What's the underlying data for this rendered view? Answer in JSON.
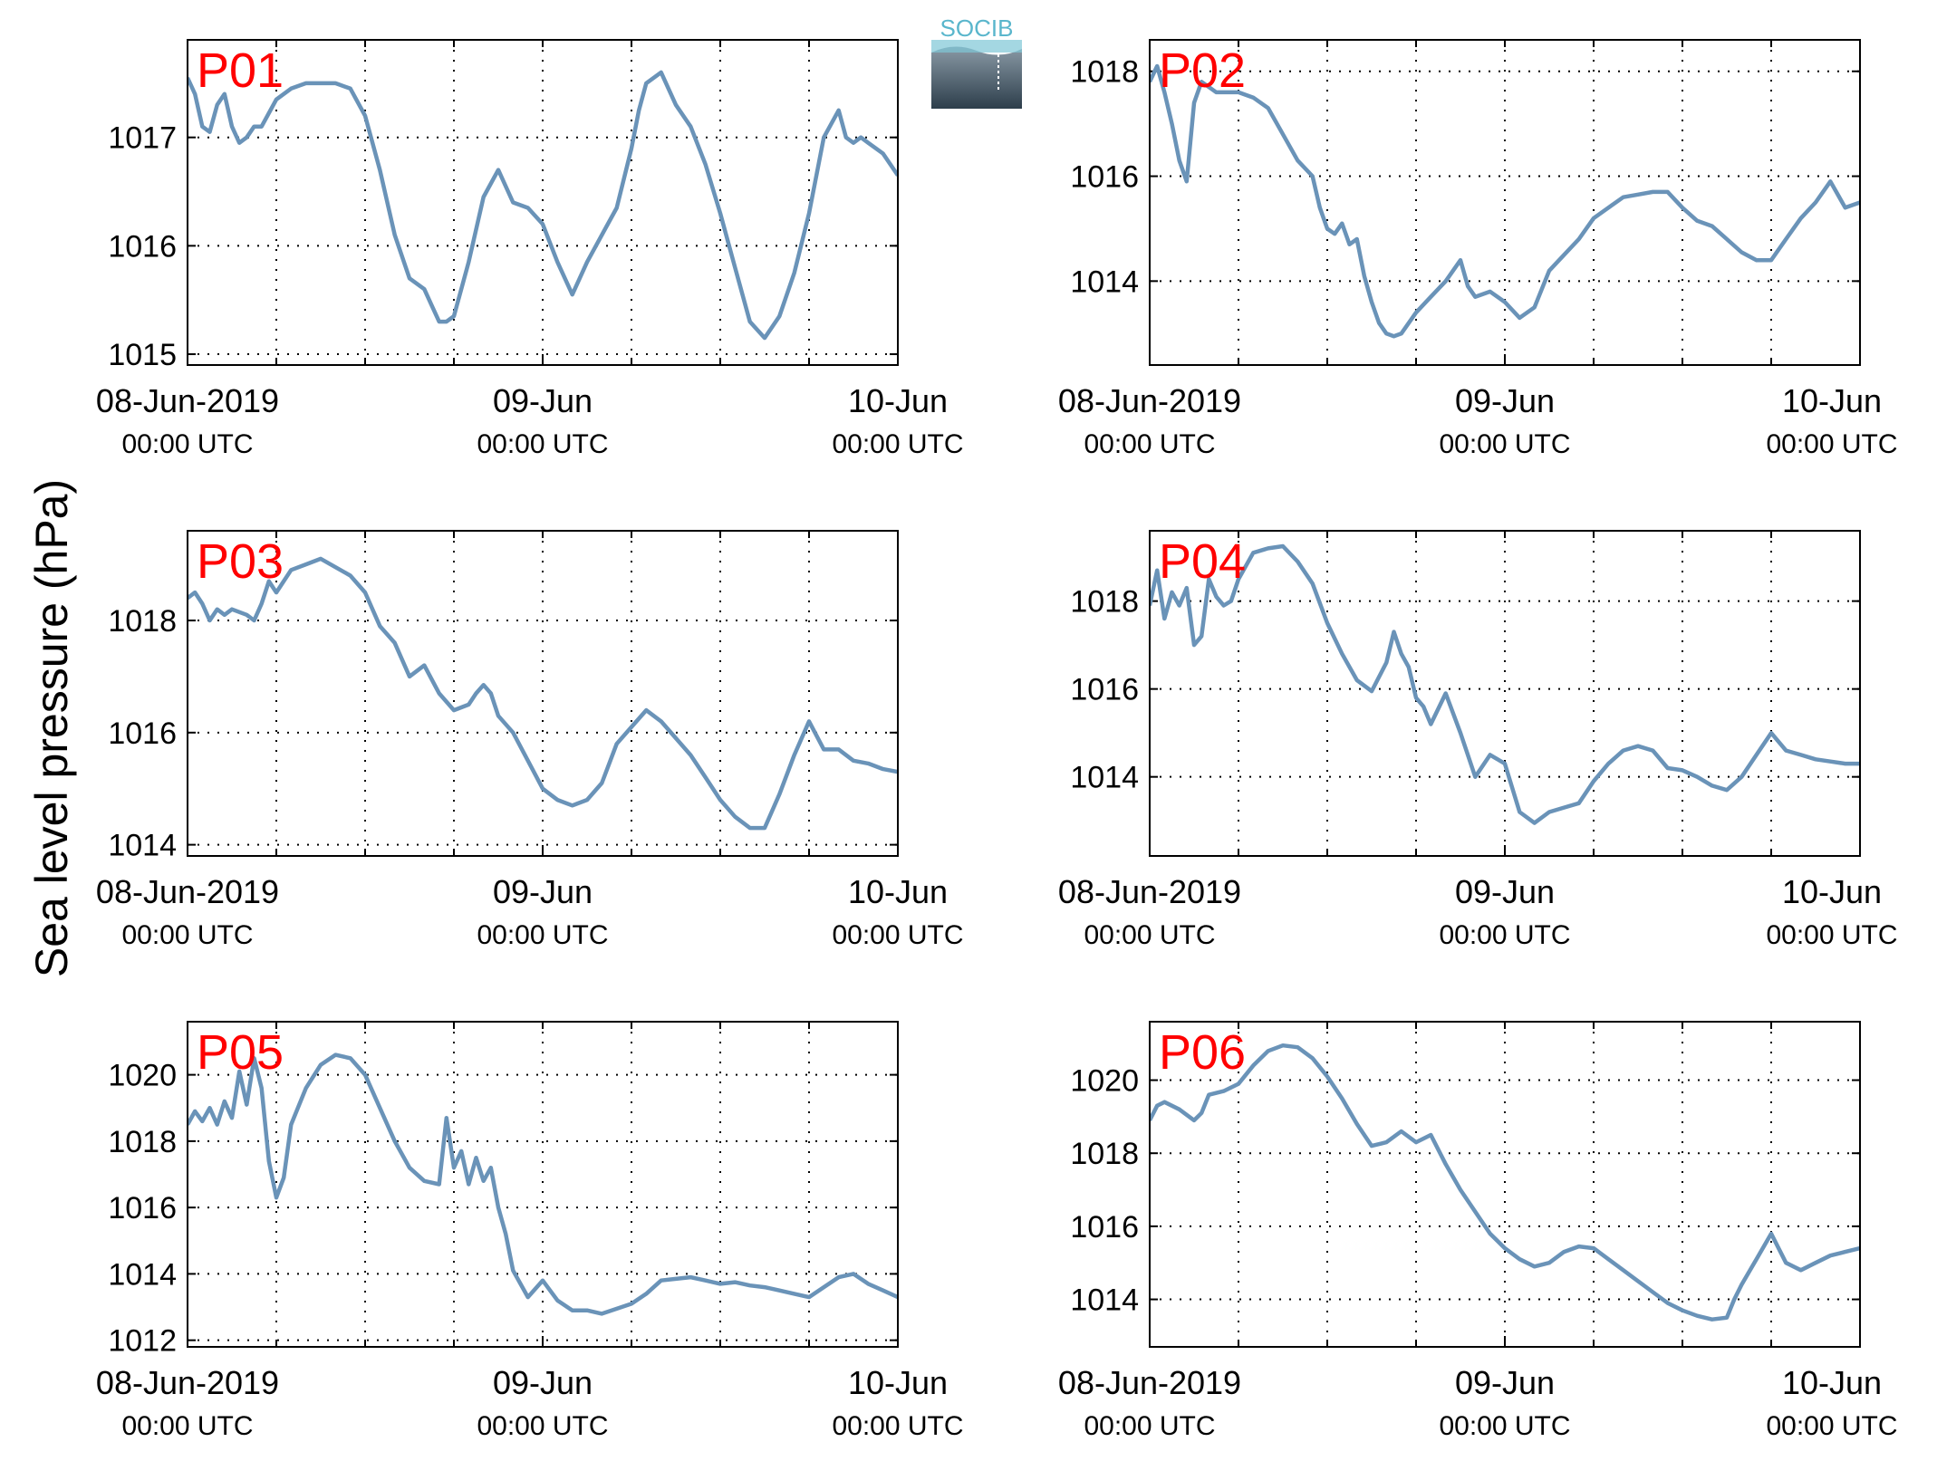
{
  "figure": {
    "ylabel": "Sea level pressure (hPa)",
    "logo_text": "SOCIB"
  },
  "style": {
    "line_color": "#6a93b8",
    "station_label_color": "#ff0000",
    "axis_color": "#000000",
    "grid": "dotted"
  },
  "x_ticks": [
    {
      "date": "08-Jun-2019",
      "time": "00:00 UTC"
    },
    {
      "date": "09-Jun",
      "time": "00:00 UTC"
    },
    {
      "date": "10-Jun",
      "time": "00:00 UTC"
    }
  ],
  "chart_data": [
    {
      "type": "line",
      "station": "P01",
      "x_unit": "hours since 08-Jun-2019 00:00 UTC",
      "xlim": [
        0,
        48
      ],
      "ylim": [
        1014.9,
        1017.9
      ],
      "yticks": [
        1015,
        1016,
        1017
      ],
      "x": [
        0,
        0.5,
        1,
        1.5,
        2,
        2.5,
        3,
        3.5,
        4,
        4.5,
        5,
        6,
        7,
        8,
        9,
        10,
        11,
        12,
        13,
        14,
        15,
        16,
        16.5,
        17,
        17.5,
        18,
        19,
        20,
        21,
        22,
        23,
        24,
        25,
        26,
        27,
        28,
        29,
        30,
        30.5,
        31,
        32,
        33,
        34,
        35,
        36,
        37,
        38,
        39,
        40,
        41,
        42,
        43,
        44,
        44.5,
        45,
        45.5,
        46,
        47,
        48
      ],
      "values": [
        1017.55,
        1017.4,
        1017.1,
        1017.05,
        1017.3,
        1017.4,
        1017.1,
        1016.95,
        1017.0,
        1017.1,
        1017.1,
        1017.35,
        1017.45,
        1017.5,
        1017.5,
        1017.5,
        1017.45,
        1017.2,
        1016.7,
        1016.1,
        1015.7,
        1015.6,
        1015.45,
        1015.3,
        1015.3,
        1015.35,
        1015.85,
        1016.45,
        1016.7,
        1016.4,
        1016.35,
        1016.2,
        1015.85,
        1015.55,
        1015.85,
        1016.1,
        1016.35,
        1016.9,
        1017.25,
        1017.5,
        1017.6,
        1017.3,
        1017.1,
        1016.75,
        1016.3,
        1015.8,
        1015.3,
        1015.15,
        1015.35,
        1015.75,
        1016.3,
        1017.0,
        1017.25,
        1017.0,
        1016.95,
        1017.0,
        1016.95,
        1016.85,
        1016.65
      ]
    },
    {
      "type": "line",
      "station": "P02",
      "x_unit": "hours since 08-Jun-2019 00:00 UTC",
      "xlim": [
        0,
        48
      ],
      "ylim": [
        1012.4,
        1018.6
      ],
      "yticks": [
        1014,
        1016,
        1018
      ],
      "x": [
        0,
        0.5,
        1,
        1.5,
        2,
        2.5,
        3,
        3.5,
        4,
        4.5,
        5,
        6,
        7,
        8,
        9,
        10,
        11,
        11.5,
        12,
        12.5,
        13,
        13.5,
        14,
        14.5,
        15,
        15.5,
        16,
        16.5,
        17,
        18,
        19,
        20,
        21,
        21.5,
        22,
        23,
        24,
        25,
        26,
        27,
        28,
        29,
        30,
        31,
        32,
        33,
        34,
        35,
        36,
        37,
        38,
        39,
        40,
        41,
        42,
        43,
        44,
        45,
        46,
        47,
        48
      ],
      "values": [
        1017.8,
        1018.1,
        1017.6,
        1017.0,
        1016.3,
        1015.9,
        1017.4,
        1017.8,
        1017.7,
        1017.6,
        1017.6,
        1017.6,
        1017.5,
        1017.3,
        1016.8,
        1016.3,
        1016.0,
        1015.4,
        1015.0,
        1014.9,
        1015.1,
        1014.7,
        1014.8,
        1014.1,
        1013.6,
        1013.2,
        1013.0,
        1012.95,
        1013.0,
        1013.4,
        1013.7,
        1014.0,
        1014.4,
        1013.9,
        1013.7,
        1013.8,
        1013.6,
        1013.3,
        1013.5,
        1014.2,
        1014.5,
        1014.8,
        1015.2,
        1015.4,
        1015.6,
        1015.65,
        1015.7,
        1015.7,
        1015.4,
        1015.15,
        1015.05,
        1014.8,
        1014.55,
        1014.4,
        1014.4,
        1014.8,
        1015.2,
        1015.5,
        1015.9,
        1015.4,
        1015.5
      ]
    },
    {
      "type": "line",
      "station": "P03",
      "x_unit": "hours since 08-Jun-2019 00:00 UTC",
      "xlim": [
        0,
        48
      ],
      "ylim": [
        1013.8,
        1019.6
      ],
      "yticks": [
        1014,
        1016,
        1018
      ],
      "x": [
        0,
        0.5,
        1,
        1.5,
        2,
        2.5,
        3,
        4,
        4.5,
        5,
        5.5,
        6,
        7,
        8,
        9,
        10,
        11,
        12,
        13,
        14,
        15,
        16,
        17,
        18,
        19,
        19.5,
        20,
        20.5,
        21,
        22,
        23,
        24,
        25,
        26,
        27,
        28,
        29,
        30,
        31,
        32,
        33,
        34,
        35,
        36,
        37,
        38,
        39,
        40,
        41,
        42,
        43,
        44,
        45,
        46,
        47,
        48
      ],
      "values": [
        1018.4,
        1018.5,
        1018.3,
        1018.0,
        1018.2,
        1018.1,
        1018.2,
        1018.1,
        1018.0,
        1018.3,
        1018.7,
        1018.5,
        1018.9,
        1019.0,
        1019.1,
        1018.95,
        1018.8,
        1018.5,
        1017.9,
        1017.6,
        1017.0,
        1017.2,
        1016.7,
        1016.4,
        1016.5,
        1016.7,
        1016.85,
        1016.7,
        1016.3,
        1016.0,
        1015.5,
        1015.0,
        1014.8,
        1014.7,
        1014.8,
        1015.1,
        1015.8,
        1016.1,
        1016.4,
        1016.2,
        1015.9,
        1015.6,
        1015.2,
        1014.8,
        1014.5,
        1014.3,
        1014.3,
        1014.9,
        1015.6,
        1016.2,
        1015.7,
        1015.7,
        1015.5,
        1015.45,
        1015.35,
        1015.3
      ]
    },
    {
      "type": "line",
      "station": "P04",
      "x_unit": "hours since 08-Jun-2019 00:00 UTC",
      "xlim": [
        0,
        48
      ],
      "ylim": [
        1012.2,
        1019.6
      ],
      "yticks": [
        1014,
        1016,
        1018
      ],
      "x": [
        0,
        0.5,
        1,
        1.5,
        2,
        2.5,
        3,
        3.5,
        4,
        4.5,
        5,
        5.5,
        6,
        7,
        8,
        9,
        10,
        11,
        12,
        13,
        14,
        15,
        16,
        16.5,
        17,
        17.5,
        18,
        18.5,
        19,
        20,
        21,
        22,
        23,
        24,
        25,
        26,
        27,
        28,
        29,
        30,
        31,
        32,
        33,
        34,
        35,
        36,
        37,
        38,
        39,
        40,
        41,
        42,
        43,
        44,
        45,
        46,
        47,
        48
      ],
      "values": [
        1017.9,
        1018.7,
        1017.6,
        1018.2,
        1017.9,
        1018.3,
        1017.0,
        1017.2,
        1018.5,
        1018.1,
        1017.9,
        1018.0,
        1018.5,
        1019.1,
        1019.2,
        1019.25,
        1018.9,
        1018.4,
        1017.5,
        1016.8,
        1016.2,
        1015.95,
        1016.6,
        1017.3,
        1016.8,
        1016.5,
        1015.8,
        1015.6,
        1015.2,
        1015.9,
        1015.0,
        1014.0,
        1014.5,
        1014.3,
        1013.2,
        1012.95,
        1013.2,
        1013.3,
        1013.4,
        1013.9,
        1014.3,
        1014.6,
        1014.7,
        1014.6,
        1014.2,
        1014.15,
        1014.0,
        1013.8,
        1013.7,
        1014.0,
        1014.5,
        1015.0,
        1014.6,
        1014.5,
        1014.4,
        1014.35,
        1014.3,
        1014.3
      ]
    },
    {
      "type": "line",
      "station": "P05",
      "x_unit": "hours since 08-Jun-2019 00:00 UTC",
      "xlim": [
        0,
        48
      ],
      "ylim": [
        1011.8,
        1021.6
      ],
      "yticks": [
        1012,
        1014,
        1016,
        1018,
        1020
      ],
      "x": [
        0,
        0.5,
        1,
        1.5,
        2,
        2.5,
        3,
        3.5,
        4,
        4.5,
        5,
        5.5,
        6,
        6.5,
        7,
        8,
        9,
        10,
        11,
        12,
        13,
        14,
        15,
        16,
        17,
        17.5,
        18,
        18.5,
        19,
        19.5,
        20,
        20.5,
        21,
        21.5,
        22,
        23,
        24,
        25,
        26,
        27,
        28,
        29,
        30,
        31,
        32,
        33,
        34,
        35,
        36,
        37,
        38,
        39,
        40,
        41,
        42,
        43,
        44,
        45,
        46,
        47,
        48
      ],
      "values": [
        1018.5,
        1018.9,
        1018.6,
        1019.0,
        1018.5,
        1019.2,
        1018.7,
        1020.1,
        1019.1,
        1020.5,
        1019.6,
        1017.4,
        1016.3,
        1016.9,
        1018.5,
        1019.6,
        1020.3,
        1020.6,
        1020.5,
        1020.0,
        1019.0,
        1018.0,
        1017.2,
        1016.8,
        1016.7,
        1018.7,
        1017.2,
        1017.7,
        1016.7,
        1017.5,
        1016.8,
        1017.2,
        1016.0,
        1015.2,
        1014.1,
        1013.3,
        1013.8,
        1013.2,
        1012.9,
        1012.9,
        1012.8,
        1012.95,
        1013.1,
        1013.4,
        1013.8,
        1013.85,
        1013.9,
        1013.8,
        1013.7,
        1013.75,
        1013.65,
        1013.6,
        1013.5,
        1013.4,
        1013.3,
        1013.6,
        1013.9,
        1014.0,
        1013.7,
        1013.5,
        1013.3
      ]
    },
    {
      "type": "line",
      "station": "P06",
      "x_unit": "hours since 08-Jun-2019 00:00 UTC",
      "xlim": [
        0,
        48
      ],
      "ylim": [
        1012.7,
        1021.6
      ],
      "yticks": [
        1014,
        1016,
        1018,
        1020
      ],
      "x": [
        0,
        0.5,
        1,
        2,
        3,
        3.5,
        4,
        5,
        6,
        7,
        8,
        9,
        10,
        11,
        12,
        13,
        14,
        15,
        16,
        17,
        18,
        19,
        20,
        21,
        22,
        23,
        24,
        25,
        26,
        27,
        28,
        29,
        30,
        31,
        32,
        33,
        34,
        35,
        36,
        37,
        38,
        39,
        39.5,
        40,
        41,
        42,
        43,
        44,
        45,
        46,
        47,
        48
      ],
      "values": [
        1018.9,
        1019.3,
        1019.4,
        1019.2,
        1018.9,
        1019.1,
        1019.6,
        1019.7,
        1019.9,
        1020.4,
        1020.8,
        1020.95,
        1020.9,
        1020.6,
        1020.1,
        1019.5,
        1018.8,
        1018.2,
        1018.3,
        1018.6,
        1018.3,
        1018.5,
        1017.7,
        1017.0,
        1016.4,
        1015.8,
        1015.4,
        1015.1,
        1014.9,
        1015.0,
        1015.3,
        1015.45,
        1015.4,
        1015.1,
        1014.8,
        1014.5,
        1014.2,
        1013.9,
        1013.7,
        1013.55,
        1013.45,
        1013.5,
        1014.0,
        1014.4,
        1015.1,
        1015.8,
        1015.0,
        1014.8,
        1015.0,
        1015.2,
        1015.3,
        1015.4
      ]
    }
  ]
}
